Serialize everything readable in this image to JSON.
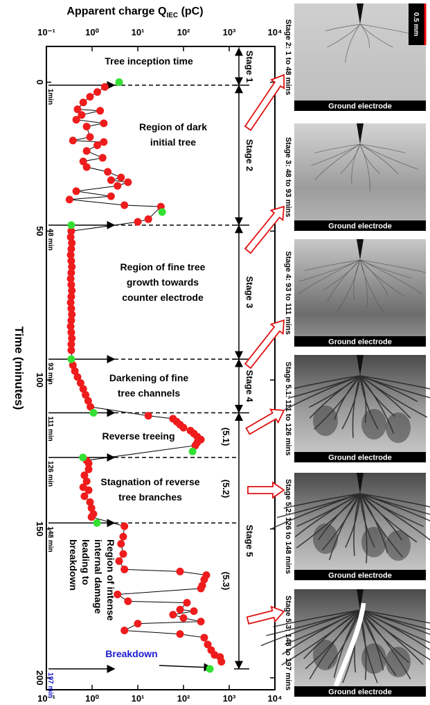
{
  "chart_data": {
    "type": "scatter",
    "x_label": {
      "text": "Apparent charge Q",
      "sub": "IEC",
      "after": " (pC)"
    },
    "y_label": "Time (minutes)",
    "xlog": true,
    "xlim": [
      0.1,
      10000
    ],
    "xticks": [
      {
        "value": 0.1,
        "label": "10⁻¹"
      },
      {
        "value": 1,
        "label": "10⁰"
      },
      {
        "value": 10,
        "label": "10¹"
      },
      {
        "value": 100,
        "label": "10²"
      },
      {
        "value": 1000,
        "label": "10³"
      },
      {
        "value": 10000,
        "label": "10⁴"
      }
    ],
    "ylim": [
      -12,
      204
    ],
    "yticks": [
      0,
      50,
      100,
      150,
      200
    ],
    "y_inverted": true,
    "line_color": "#000000",
    "series": [
      {
        "color": "#ee1c1c",
        "x": [
          1.9,
          1.3,
          0.9,
          0.64,
          0.48,
          1.5,
          0.59,
          0.45,
          1.8,
          0.76,
          0.9,
          0.38,
          1.8,
          1.3,
          0.76,
          1.7,
          0.64,
          0.76,
          2.2,
          4.3,
          2.6,
          6.1,
          3.6,
          0.45,
          2.6,
          0.32,
          5.1,
          32,
          17,
          10,
          0.35,
          0.34,
          0.36,
          0.35,
          0.34,
          0.35,
          0.36,
          0.35,
          0.34,
          0.35,
          0.36,
          0.35,
          0.34,
          0.35,
          0.36,
          0.35,
          0.34,
          0.35,
          0.36,
          0.35,
          0.35,
          0.38,
          0.42,
          0.48,
          0.56,
          0.64,
          0.72,
          0.82,
          0.92,
          17,
          59,
          71,
          84,
          100,
          142,
          169,
          200,
          240,
          200,
          181,
          0.76,
          0.84,
          0.84,
          0.68,
          0.76,
          0.64,
          0.84,
          0.68,
          0.9,
          0.97,
          1.07,
          0.97,
          5.1,
          4.8,
          4.3,
          4.8,
          3.9,
          5.1,
          84,
          316,
          284,
          257,
          240,
          3.6,
          6.1,
          119,
          84,
          169,
          59,
          100,
          240,
          10,
          5.1,
          84,
          284,
          339,
          404,
          479,
          631,
          676
        ],
        "y": [
          1.6,
          3.3,
          4.9,
          6.8,
          9.1,
          9.6,
          11.0,
          12.6,
          13.8,
          14.9,
          18.4,
          19.6,
          20.1,
          21.2,
          23.1,
          25.4,
          26.6,
          28.5,
          30.1,
          32.0,
          32.9,
          33.6,
          34.8,
          36.6,
          38.3,
          39.4,
          41.3,
          41.8,
          46.0,
          46.9,
          50,
          52,
          54,
          56,
          58,
          60,
          62,
          64,
          66,
          68,
          70,
          72,
          74,
          76,
          78,
          80,
          82,
          84,
          86,
          88,
          90,
          95,
          97,
          99,
          101,
          103,
          105,
          107,
          109,
          112,
          113,
          114,
          115,
          116,
          117,
          118,
          119,
          120,
          121,
          122,
          127,
          128,
          130,
          132,
          134,
          136,
          137,
          139,
          141,
          143,
          145,
          146,
          149.1,
          152.6,
          155,
          158.4,
          160.8,
          163.6,
          164.3,
          165.5,
          167,
          169,
          170,
          172,
          174.3,
          174.8,
          177.1,
          177.6,
          178.8,
          179.9,
          181.1,
          181.8,
          184.1,
          185.3,
          186.5,
          188.8,
          190.7,
          192.3,
          193,
          194.6
        ]
      },
      {
        "color": "#33e033",
        "x": [
          3.9,
          34,
          0.35,
          0.35,
          1.07,
          158,
          0.63,
          1.28,
          377
        ],
        "y": [
          0,
          43.6,
          48,
          93,
          111,
          124,
          126,
          148,
          197
        ]
      }
    ],
    "time_markers": [
      {
        "value": 1,
        "label": "1min"
      },
      {
        "value": 48,
        "label": "48 min"
      },
      {
        "value": 93,
        "label": "93 min"
      },
      {
        "value": 111,
        "label": "111 min"
      },
      {
        "value": 126,
        "label": "126 min"
      },
      {
        "value": 148,
        "label": "148 min"
      },
      {
        "value": 197,
        "label": "197 min",
        "color": "#1a1acc"
      }
    ],
    "stages": [
      {
        "label": "Stage 1",
        "to": 1
      },
      {
        "label": "Stage 2",
        "from": 1,
        "to": 48
      },
      {
        "label": "Stage 3",
        "from": 48,
        "to": 93
      },
      {
        "label": "Stage 4",
        "from": 93,
        "to": 111
      },
      {
        "label": "Stage 5",
        "from": 111,
        "to": 197
      }
    ],
    "annotations": [
      [
        "Tree inception time"
      ],
      [
        "Region of dark",
        "initial tree"
      ],
      [
        "Region of fine tree",
        "growth towards",
        "counter electrode"
      ],
      [
        "Darkening of fine",
        "tree channels"
      ],
      [
        "Reverse treeing"
      ],
      [
        "Stagnation of reverse",
        "tree branches"
      ],
      [
        "Region of intense",
        "internal damage",
        "leading to",
        "breakdown"
      ],
      [
        "Breakdown"
      ]
    ],
    "substages": [
      "(5.1)",
      "(5.2)",
      "(5.3)"
    ]
  },
  "panels": [
    {
      "caption": "Stage 2: 1 to 48 mins",
      "footer": "Ground electrode"
    },
    {
      "caption": "Stage 3: 48 to 93 mins",
      "footer": "Ground electrode"
    },
    {
      "caption": "Stage 4: 93 to 111 mins",
      "footer": "Ground electrode"
    },
    {
      "caption": "Stage 5.1: 111 to 126 mins",
      "footer": "Ground electrode"
    },
    {
      "caption": "Stage 5.2: 126 to 148 mins",
      "footer": "Ground electrode"
    },
    {
      "caption": "Stage 5.3: 148 to 197 mins",
      "footer": "Ground electrode"
    }
  ],
  "scale_bar": "0.5 mm"
}
